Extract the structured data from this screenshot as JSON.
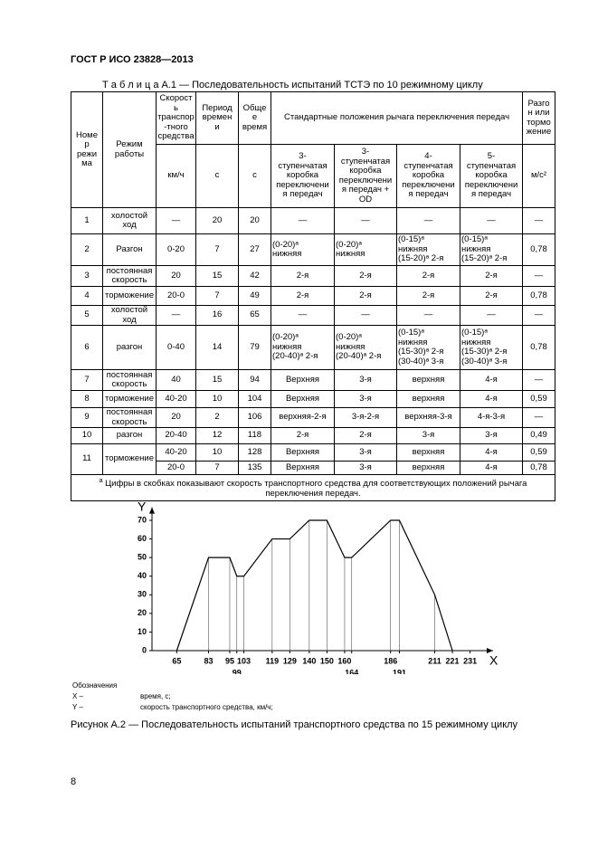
{
  "header": {
    "title": "ГОСТ Р ИСО 23828—2013"
  },
  "table": {
    "caption": "Т а б л и ц а  А.1 — Последовательность испытаний ТСТЭ по 10 режимному циклу",
    "head": {
      "number": "Номе\nр\nрежи\nма",
      "mode": "Режим\nработы",
      "speed": "Скорост\nь\nтранспор\n-тного\nсредства",
      "speed_unit": "км/ч",
      "period": "Период\nвремен\nи",
      "period_unit": "с",
      "total": "Обще\nе\nвремя",
      "total_unit": "с",
      "gears": "Стандартные положения рычага переключения передач",
      "gear_types": [
        "3-\nступенчатая\nкоробка\nпереключени\nя передач",
        "3-\nступенчатая\nкоробка\nпереключени\nя передач +\nOD",
        "4-\nступенчатая\nкоробка\nпереключени\nя передач",
        "5-\nступенчатая\nкоробка\nпереключени\nя передач"
      ],
      "accel": "Разго\nн или\nтормо\nжение",
      "accel_unit": "м/с²"
    },
    "rows": [
      [
        "1",
        "холостой\nход",
        "—",
        "20",
        "20",
        "—",
        "—",
        "—",
        "—",
        "—"
      ],
      [
        "2",
        "Разгон",
        "0-20",
        "7",
        "27",
        "(0-20)ᵃ\nнижняя",
        "(0-20)ᵃ\nнижняя",
        "(0-15)ᵃ\nнижняя\n(15-20)ᵃ 2-я",
        "(0-15)ᵃ\nнижняя\n(15-20)ᵃ 2-я",
        "0,78"
      ],
      [
        "3",
        "постоянная\nскорость",
        "20",
        "15",
        "42",
        "2-я",
        "2-я",
        "2-я",
        "2-я",
        "—"
      ],
      [
        "4",
        "торможение",
        "20-0",
        "7",
        "49",
        "2-я",
        "2-я",
        "2-я",
        "2-я",
        "0,78"
      ],
      [
        "5",
        "холостой\nход",
        "—",
        "16",
        "65",
        "—",
        "—",
        "—",
        "—",
        "—"
      ],
      [
        "6",
        "разгон",
        "0-40",
        "14",
        "79",
        "(0-20)ᵃ\nнижняя\n(20-40)ᵃ 2-я",
        "(0-20)ᵃ\nнижняя\n(20-40)ᵃ 2-я",
        "(0-15)ᵃ\nнижняя\n(15-30)ᵃ 2-я\n(30-40)ᵃ 3-я",
        "(0-15)ᵃ\nнижняя\n(15-30)ᵃ 2-я\n(30-40)ᵃ 3-я",
        "0,78"
      ],
      [
        "7",
        "постоянная\nскорость",
        "40",
        "15",
        "94",
        "Верхняя",
        "3-я",
        "верхняя",
        "4-я",
        "—"
      ],
      [
        "8",
        "торможение",
        "40-20",
        "10",
        "104",
        "Верхняя",
        "3-я",
        "верхняя",
        "4-я",
        "0,59"
      ],
      [
        "9",
        "постоянная\nскорость",
        "20",
        "2",
        "106",
        "верхняя-2-я",
        "3-я-2-я",
        "верхняя-3-я",
        "4-я-3-я",
        "—"
      ],
      [
        "10",
        "разгон",
        "20-40",
        "12",
        "118",
        "2-я",
        "2-я",
        "3-я",
        "3-я",
        "0,49"
      ],
      [
        "11",
        "торможение",
        "40-20",
        "10",
        "128",
        "Верхняя",
        "3-я",
        "верхняя",
        "4-я",
        "0,59"
      ],
      [
        "20-0",
        "7",
        "135",
        "Верхняя",
        "3-я",
        "верхняя",
        "4-я",
        "0,78"
      ]
    ],
    "footnote": {
      "mark": "a",
      "text": "Цифры в скобках показывают скорость транспортного средства для соответствующих положений рычага\nпереключения передач."
    }
  },
  "chart_data": {
    "type": "line",
    "x": [
      65,
      83,
      95,
      99,
      103,
      119,
      129,
      140,
      150,
      160,
      164,
      186,
      191,
      211,
      221
    ],
    "values": [
      0,
      50,
      50,
      40,
      40,
      60,
      60,
      70,
      70,
      50,
      50,
      70,
      70,
      30,
      0
    ],
    "color": "#000000",
    "xlabel": "X",
    "ylabel": "Y",
    "xlim": [
      51,
      244
    ],
    "ylim": [
      0,
      77
    ],
    "xticks": [
      65,
      83,
      95,
      99,
      103,
      119,
      129,
      140,
      150,
      160,
      164,
      186,
      191,
      211,
      221,
      231
    ],
    "yticks": [
      0,
      10,
      20,
      30,
      40,
      50,
      60,
      70
    ]
  },
  "legend": {
    "title": "Обозначения",
    "items": [
      {
        "key": "X –",
        "text": "время, с;"
      },
      {
        "key": "Y –",
        "text": "скорость транспортного средства, км/ч;"
      }
    ]
  },
  "figure_caption": "Рисунок А.2 — Последовательность испытаний транспортного средства по 15 режимному циклу",
  "page_number": "8"
}
